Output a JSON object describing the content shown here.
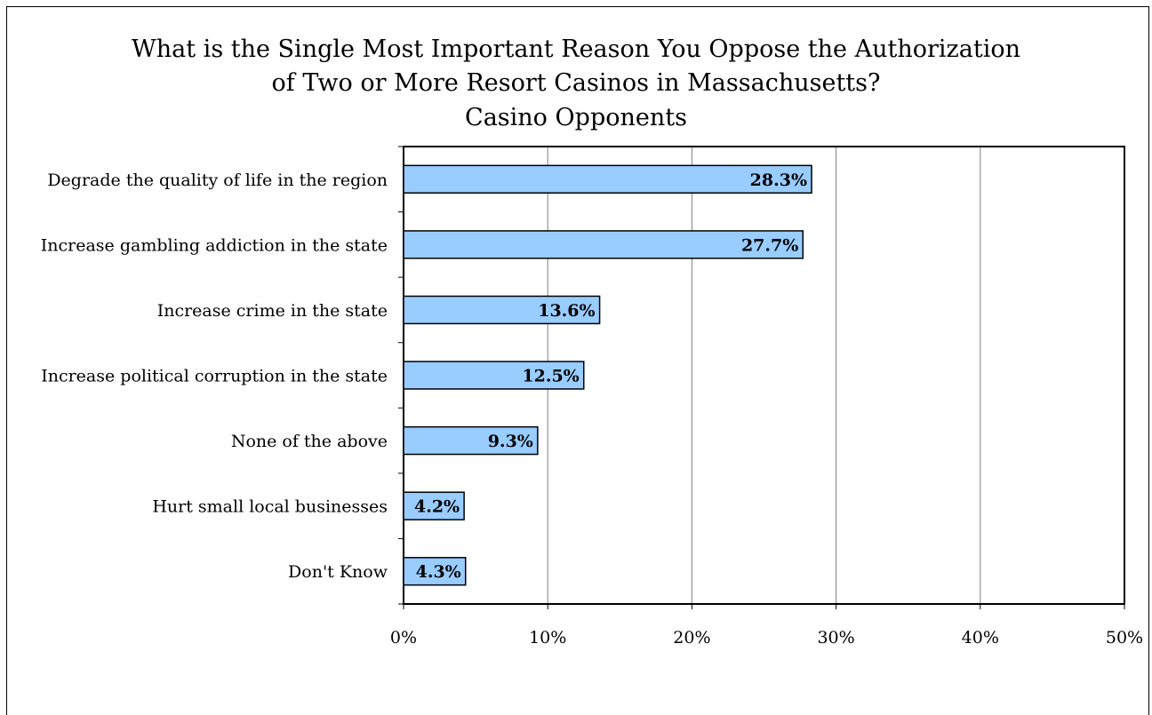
{
  "chart_data": {
    "type": "bar",
    "orientation": "horizontal",
    "title_lines": [
      "What is the Single Most Important Reason You Oppose the Authorization",
      "of Two or More Resort Casinos in Massachusetts?",
      "Casino Opponents"
    ],
    "categories": [
      "Degrade the quality of life in the region",
      "Increase gambling addiction in the state",
      "Increase crime in the state",
      "Increase political corruption in the state",
      "None of the above",
      "Hurt small local businesses",
      "Don't Know"
    ],
    "values": [
      28.3,
      27.7,
      13.6,
      12.5,
      9.3,
      4.2,
      4.3
    ],
    "data_labels": [
      "28.3%",
      "27.7%",
      "13.6%",
      "12.5%",
      "9.3%",
      "4.2%",
      "4.3%"
    ],
    "xlim": [
      0,
      50
    ],
    "xticks": [
      0,
      10,
      20,
      30,
      40,
      50
    ],
    "xtick_labels": [
      "0%",
      "10%",
      "20%",
      "30%",
      "40%",
      "50%"
    ],
    "xlabel": "",
    "ylabel": "",
    "grid": "vertical",
    "bar_color": "#99CCFF",
    "bar_edge_color": "#000000",
    "legend": "none"
  }
}
